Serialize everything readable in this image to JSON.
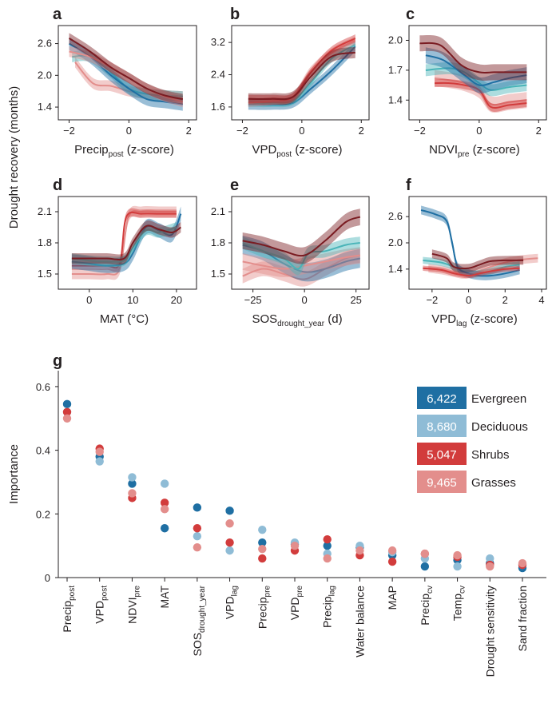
{
  "colors": {
    "evergreen": "#1f6fa3",
    "deciduous": "#8fbcd6",
    "shrubs": "#d23c3c",
    "grasses": "#e38e8c",
    "teal": "#49b4b8",
    "evergreen_dark": "#7a1c22"
  },
  "shared_ylabel": "Drought recovery (months)",
  "chart_data": [
    {
      "type": "line",
      "panel": "a",
      "xlabel": "Precip",
      "xlabel_sub": "post",
      "xlabel_suffix": "(z-score)",
      "xticks": [
        -2,
        0,
        2
      ],
      "xtick_labels": [
        "−2",
        "0",
        "2"
      ],
      "yticks": [
        1.4,
        2.0,
        2.6
      ],
      "ytick_labels": [
        "1.4",
        "2.0",
        "2.6"
      ],
      "xlim": [
        -2.2,
        2.1
      ],
      "ylim": [
        1.25,
        2.85
      ],
      "series": [
        {
          "color": "grasses",
          "band": 0.1,
          "x": [
            -1.8,
            -1.2,
            -0.6,
            0,
            0.6,
            1.2,
            1.8
          ],
          "y": [
            2.25,
            1.85,
            1.8,
            1.7,
            1.65,
            1.62,
            1.6
          ]
        },
        {
          "color": "teal",
          "band": 0.1,
          "x": [
            -1.9,
            -1.3,
            -0.6,
            0,
            0.6,
            1.2,
            1.8
          ],
          "y": [
            2.35,
            2.35,
            2.05,
            1.75,
            1.65,
            1.62,
            1.6
          ]
        },
        {
          "color": "evergreen",
          "band": 0.12,
          "x": [
            -2,
            -1.3,
            -0.6,
            0,
            0.6,
            1.2,
            1.8
          ],
          "y": [
            2.6,
            2.35,
            2.0,
            1.75,
            1.55,
            1.5,
            1.45
          ]
        },
        {
          "color": "grasses",
          "band": 0.1,
          "x": [
            -2,
            -1.3,
            -0.6,
            0,
            0.6,
            1.2,
            1.8
          ],
          "y": [
            2.45,
            2.35,
            2.15,
            1.95,
            1.75,
            1.6,
            1.5
          ]
        },
        {
          "color": "evergreen_dark",
          "band": 0.1,
          "x": [
            -2,
            -1.3,
            -0.6,
            0,
            0.6,
            1.2,
            1.8
          ],
          "y": [
            2.7,
            2.45,
            2.15,
            1.95,
            1.75,
            1.62,
            1.55
          ]
        }
      ]
    },
    {
      "type": "line",
      "panel": "b",
      "xlabel": "VPD",
      "xlabel_sub": "post",
      "xlabel_suffix": "(z-score)",
      "xticks": [
        -2,
        0,
        2
      ],
      "xtick_labels": [
        "−2",
        "0",
        "2"
      ],
      "yticks": [
        1.6,
        2.4,
        3.2
      ],
      "ytick_labels": [
        "1.6",
        "2.4",
        "3.2"
      ],
      "xlim": [
        -2.2,
        2.1
      ],
      "ylim": [
        1.4,
        3.5
      ],
      "series": [
        {
          "color": "evergreen",
          "band": 0.12,
          "x": [
            -1.8,
            -1.0,
            -0.3,
            0.3,
            1.0,
            1.8
          ],
          "y": [
            1.65,
            1.65,
            1.7,
            2.05,
            2.5,
            3.1
          ]
        },
        {
          "color": "teal",
          "band": 0.1,
          "x": [
            -1.8,
            -1.0,
            -0.3,
            0.3,
            1.0,
            1.8
          ],
          "y": [
            1.7,
            1.7,
            1.75,
            2.2,
            2.8,
            3.15
          ]
        },
        {
          "color": "grasses",
          "band": 0.1,
          "x": [
            -1.8,
            -1.0,
            -0.3,
            0.3,
            1.0,
            1.8
          ],
          "y": [
            1.7,
            1.75,
            1.85,
            2.5,
            2.95,
            3.25
          ]
        },
        {
          "color": "shrubs",
          "band": 0.1,
          "x": [
            -1.8,
            -1.0,
            -0.3,
            0.3,
            1.0,
            1.8
          ],
          "y": [
            1.8,
            1.8,
            1.85,
            2.45,
            3.0,
            3.3
          ]
        },
        {
          "color": "evergreen_dark",
          "band": 0.14,
          "x": [
            -1.8,
            -1.0,
            -0.3,
            0.3,
            1.0,
            1.8
          ],
          "y": [
            1.8,
            1.8,
            1.85,
            2.35,
            2.85,
            2.95
          ]
        }
      ]
    },
    {
      "type": "line",
      "panel": "c",
      "xlabel": "NDVI",
      "xlabel_sub": "pre",
      "xlabel_suffix": "(z-score)",
      "xticks": [
        -2,
        0,
        2
      ],
      "xtick_labels": [
        "−2",
        "0",
        "2"
      ],
      "yticks": [
        1.4,
        1.7,
        2.0
      ],
      "ytick_labels": [
        "1.4",
        "1.7",
        "2.0"
      ],
      "xlim": [
        -2.2,
        2.1
      ],
      "ylim": [
        1.25,
        2.1
      ],
      "series": [
        {
          "color": "grasses",
          "band": 0.08,
          "x": [
            -1.5,
            -1.0,
            -0.5,
            0,
            0.4,
            1.0,
            1.6
          ],
          "y": [
            1.62,
            1.6,
            1.57,
            1.5,
            1.36,
            1.38,
            1.4
          ]
        },
        {
          "color": "shrubs",
          "band": 0.04,
          "x": [
            -1.5,
            -1.0,
            -0.5,
            0,
            0.4,
            1.0,
            1.6
          ],
          "y": [
            1.57,
            1.57,
            1.55,
            1.5,
            1.33,
            1.35,
            1.37
          ]
        },
        {
          "color": "teal",
          "band": 0.06,
          "x": [
            -1.8,
            -1.0,
            -0.5,
            0,
            0.4,
            1.0,
            1.6
          ],
          "y": [
            1.7,
            1.72,
            1.68,
            1.57,
            1.5,
            1.53,
            1.55
          ]
        },
        {
          "color": "evergreen",
          "band": 0.08,
          "x": [
            -1.8,
            -1.2,
            -0.5,
            0,
            0.5,
            1.0,
            1.6
          ],
          "y": [
            1.85,
            1.8,
            1.65,
            1.55,
            1.58,
            1.62,
            1.65
          ]
        },
        {
          "color": "evergreen_dark",
          "band": 0.08,
          "x": [
            -2,
            -1.3,
            -0.6,
            0,
            0.5,
            1.0,
            1.6
          ],
          "y": [
            1.97,
            1.95,
            1.75,
            1.68,
            1.68,
            1.68,
            1.68
          ]
        }
      ]
    },
    {
      "type": "line",
      "panel": "d",
      "xlabel": "MAT (°C)",
      "xlabel_sub": "",
      "xlabel_suffix": "",
      "xticks": [
        0,
        10,
        20
      ],
      "xtick_labels": [
        "0",
        "10",
        "20"
      ],
      "yticks": [
        1.5,
        1.8,
        2.1
      ],
      "ytick_labels": [
        "1.5",
        "1.8",
        "2.1"
      ],
      "xlim": [
        -6,
        23.5
      ],
      "ylim": [
        1.4,
        2.2
      ],
      "series": [
        {
          "color": "grasses",
          "band": 0.05,
          "x": [
            -4,
            0,
            4,
            7,
            9,
            12,
            16,
            20
          ],
          "y": [
            1.5,
            1.5,
            1.5,
            1.55,
            2.05,
            2.1,
            2.1,
            2.1
          ]
        },
        {
          "color": "shrubs",
          "band": 0.04,
          "x": [
            -4,
            0,
            4,
            7,
            8.5,
            12,
            16,
            20
          ],
          "y": [
            1.58,
            1.58,
            1.58,
            1.6,
            2.05,
            2.08,
            2.08,
            2.08
          ]
        },
        {
          "color": "evergreen",
          "band": 0.07,
          "x": [
            -4,
            0,
            4,
            8,
            10,
            13,
            16,
            19,
            21
          ],
          "y": [
            1.62,
            1.6,
            1.58,
            1.6,
            1.7,
            1.95,
            1.92,
            1.88,
            2.08
          ]
        },
        {
          "color": "teal",
          "band": 0.05,
          "x": [
            -4,
            0,
            4,
            8,
            10,
            13,
            16,
            20
          ],
          "y": [
            1.65,
            1.63,
            1.62,
            1.63,
            1.75,
            1.92,
            1.9,
            1.95
          ]
        },
        {
          "color": "evergreen_dark",
          "band": 0.05,
          "x": [
            -4,
            0,
            4,
            8,
            10,
            13,
            16,
            19,
            21
          ],
          "y": [
            1.65,
            1.65,
            1.65,
            1.65,
            1.8,
            1.96,
            1.93,
            1.9,
            1.95
          ]
        }
      ]
    },
    {
      "type": "line",
      "panel": "e",
      "xlabel": "SOS",
      "xlabel_sub": "drought_year",
      "xlabel_suffix": "(d)",
      "xticks": [
        -25,
        0,
        25
      ],
      "xtick_labels": [
        "−25",
        "0",
        "25"
      ],
      "yticks": [
        1.5,
        1.8,
        2.1
      ],
      "ytick_labels": [
        "1.5",
        "1.8",
        "2.1"
      ],
      "xlim": [
        -33,
        29
      ],
      "ylim": [
        1.4,
        2.2
      ],
      "series": [
        {
          "color": "grasses",
          "band": 0.07,
          "x": [
            -30,
            -20,
            -10,
            0,
            10,
            20,
            27
          ],
          "y": [
            1.48,
            1.55,
            1.5,
            1.45,
            1.55,
            1.65,
            1.68
          ]
        },
        {
          "color": "evergreen",
          "band": 0.09,
          "x": [
            -30,
            -20,
            -10,
            0,
            10,
            20,
            27
          ],
          "y": [
            1.78,
            1.72,
            1.6,
            1.52,
            1.55,
            1.62,
            1.65
          ]
        },
        {
          "color": "grasses",
          "band": 0.08,
          "x": [
            -30,
            -20,
            -10,
            0,
            10,
            20,
            27
          ],
          "y": [
            1.62,
            1.58,
            1.55,
            1.58,
            1.62,
            1.66,
            1.68
          ]
        },
        {
          "color": "teal",
          "band": 0.06,
          "x": [
            -30,
            -20,
            -10,
            -3,
            2,
            10,
            20,
            27
          ],
          "y": [
            1.8,
            1.72,
            1.65,
            1.55,
            1.7,
            1.72,
            1.78,
            1.8
          ]
        },
        {
          "color": "evergreen_dark",
          "band": 0.08,
          "x": [
            -30,
            -20,
            -10,
            0,
            10,
            20,
            27
          ],
          "y": [
            1.82,
            1.78,
            1.72,
            1.68,
            1.82,
            2.0,
            2.05
          ]
        }
      ]
    },
    {
      "type": "line",
      "panel": "f",
      "xlabel": "VPD",
      "xlabel_sub": "lag",
      "xlabel_suffix": "(z-score)",
      "xticks": [
        -2,
        0,
        2,
        4
      ],
      "xtick_labels": [
        "−2",
        "0",
        "2",
        "4"
      ],
      "yticks": [
        1.4,
        2.0,
        2.6
      ],
      "ytick_labels": [
        "1.4",
        "2.0",
        "2.6"
      ],
      "xlim": [
        -3.0,
        4.0
      ],
      "ylim": [
        1.05,
        2.95
      ],
      "series": [
        {
          "color": "grasses",
          "band": 0.1,
          "x": [
            -2.2,
            -1.5,
            -0.8,
            -0.2,
            0.5,
            1.2,
            2.0,
            3.0,
            3.8
          ],
          "y": [
            1.42,
            1.38,
            1.32,
            1.28,
            1.35,
            1.45,
            1.55,
            1.62,
            1.65
          ]
        },
        {
          "color": "teal",
          "band": 0.08,
          "x": [
            -2.5,
            -1.5,
            -0.8,
            0,
            0.6,
            1.2,
            2.0,
            2.8
          ],
          "y": [
            1.6,
            1.55,
            1.45,
            1.3,
            1.3,
            1.35,
            1.45,
            1.5
          ]
        },
        {
          "color": "evergreen",
          "band": 0.1,
          "x": [
            -2.6,
            -1.8,
            -1.2,
            -0.9,
            -0.6,
            0,
            0.6,
            1.2,
            2.0,
            2.8
          ],
          "y": [
            2.75,
            2.65,
            2.5,
            2.0,
            1.45,
            1.3,
            1.25,
            1.25,
            1.3,
            1.38
          ]
        },
        {
          "color": "shrubs",
          "band": 0.06,
          "x": [
            -2.5,
            -1.5,
            -0.8,
            0,
            0.6,
            1.2,
            2.0,
            2.8
          ],
          "y": [
            1.42,
            1.38,
            1.3,
            1.25,
            1.3,
            1.35,
            1.4,
            1.42
          ]
        },
        {
          "color": "evergreen_dark",
          "band": 0.1,
          "x": [
            -2,
            -1.2,
            -0.8,
            0,
            0.6,
            1.2,
            2.0,
            3.0
          ],
          "y": [
            1.75,
            1.65,
            1.45,
            1.42,
            1.5,
            1.58,
            1.6,
            1.6
          ]
        }
      ]
    },
    {
      "type": "scatter",
      "panel": "g",
      "ylabel": "Importance",
      "yticks": [
        0,
        0.2,
        0.4,
        0.6
      ],
      "ytick_labels": [
        "0",
        "0.2",
        "0.4",
        "0.6"
      ],
      "ylim": [
        0,
        0.65
      ],
      "categories": [
        {
          "main": "Precip",
          "sub": "post"
        },
        {
          "main": "VPD",
          "sub": "post"
        },
        {
          "main": "NDVI",
          "sub": "pre"
        },
        {
          "main": "MAT",
          "sub": ""
        },
        {
          "main": "SOS",
          "sub": "drought_year"
        },
        {
          "main": "VPD",
          "sub": "lag"
        },
        {
          "main": "Precip",
          "sub": "pre"
        },
        {
          "main": "VPD",
          "sub": "pre"
        },
        {
          "main": "Precip",
          "sub": "lag"
        },
        {
          "main": "Water balance",
          "sub": ""
        },
        {
          "main": "MAP",
          "sub": ""
        },
        {
          "main": "Precip",
          "sub": "cv"
        },
        {
          "main": "Temp",
          "sub": "cv"
        },
        {
          "main": "Drought sensitivity",
          "sub": ""
        },
        {
          "main": "Sand fraction",
          "sub": ""
        }
      ],
      "series": [
        {
          "name": "Evergreen",
          "n": "6,422",
          "color": "evergreen",
          "values": [
            0.545,
            0.38,
            0.295,
            0.155,
            0.22,
            0.21,
            0.11,
            0.105,
            0.1,
            0.095,
            0.07,
            0.035,
            0.055,
            0.045,
            0.03
          ]
        },
        {
          "name": "Deciduous",
          "n": "8,680",
          "color": "deciduous",
          "values": [
            0.52,
            0.365,
            0.315,
            0.295,
            0.13,
            0.085,
            0.15,
            0.11,
            0.075,
            0.1,
            0.08,
            0.06,
            0.035,
            0.06,
            0.04
          ]
        },
        {
          "name": "Shrubs",
          "n": "5,047",
          "color": "shrubs",
          "values": [
            0.52,
            0.405,
            0.25,
            0.235,
            0.155,
            0.11,
            0.06,
            0.085,
            0.12,
            0.07,
            0.05,
            0.075,
            0.065,
            0.04,
            0.04
          ]
        },
        {
          "name": "Grasses",
          "n": "9,465",
          "color": "grasses",
          "values": [
            0.5,
            0.395,
            0.265,
            0.215,
            0.095,
            0.17,
            0.09,
            0.1,
            0.06,
            0.085,
            0.085,
            0.075,
            0.07,
            0.035,
            0.045
          ]
        }
      ]
    }
  ]
}
